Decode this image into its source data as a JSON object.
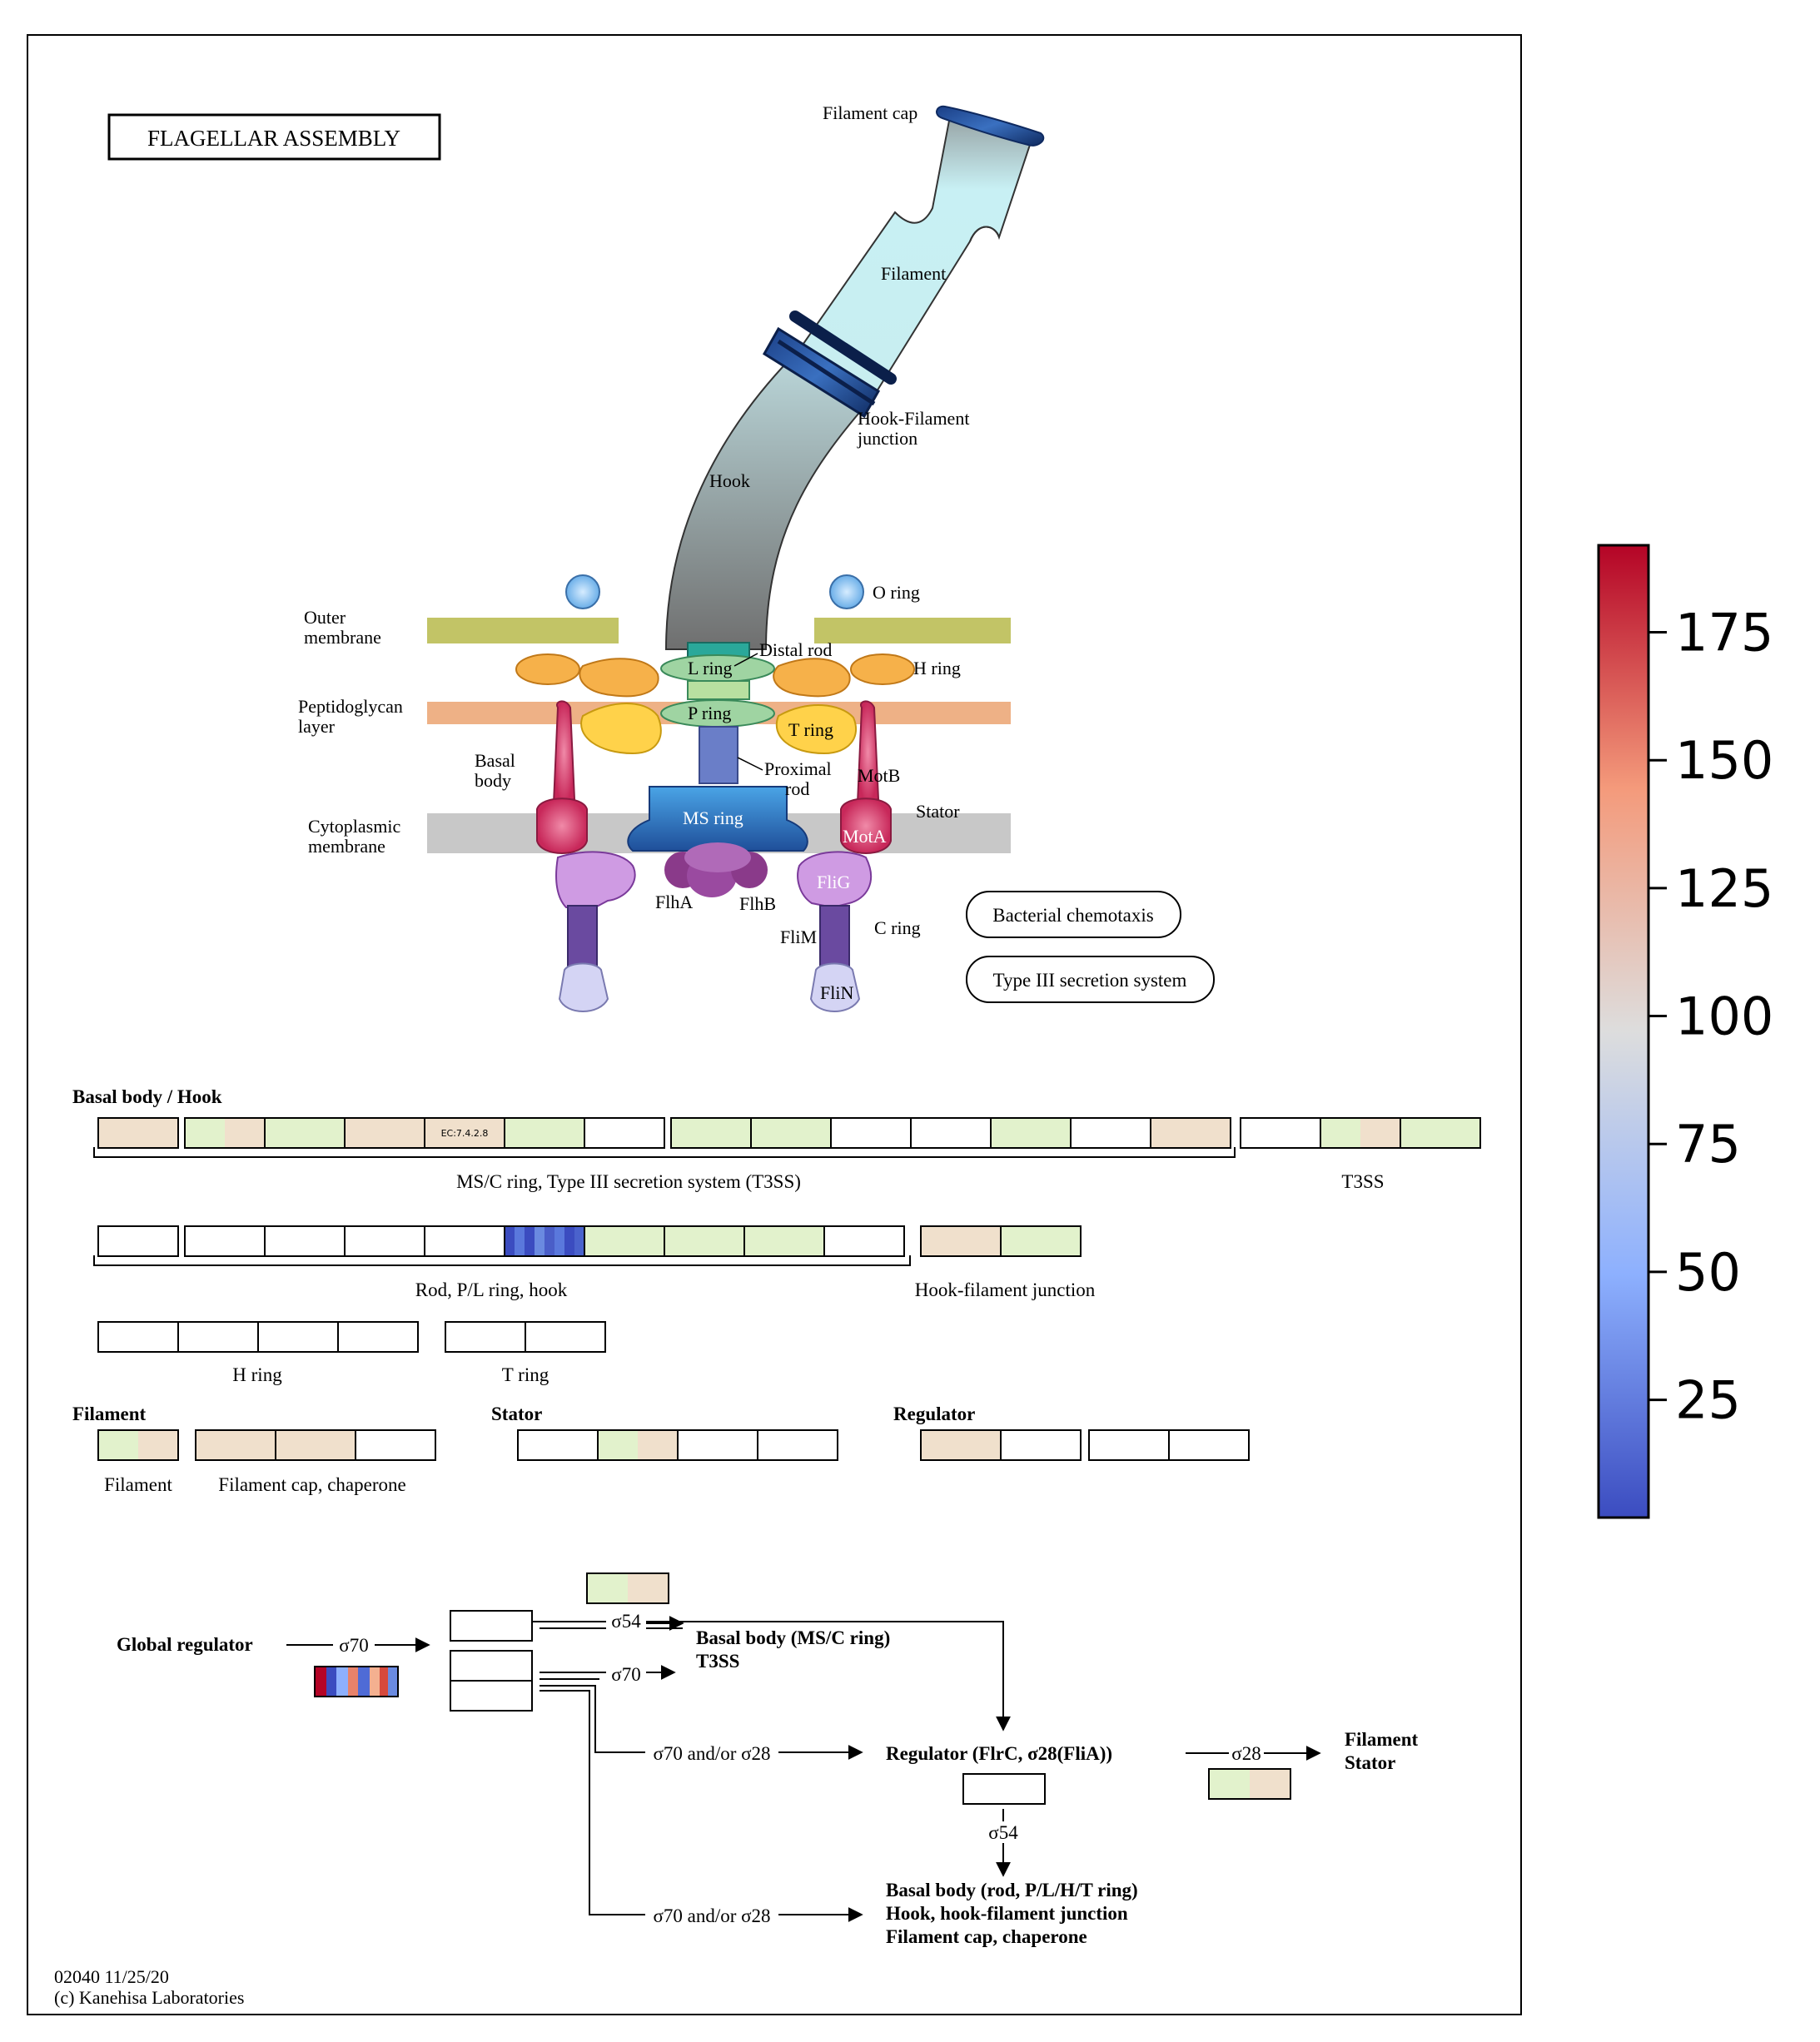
{
  "title": "FLAGELLAR ASSEMBLY",
  "footer": {
    "line1": "02040 11/25/20",
    "line2": "(c) Kanehisa Laboratories"
  },
  "structure_labels": {
    "filament_cap": "Filament cap",
    "filament": "Filament",
    "hook_filament_junction_1": "Hook-Filament",
    "hook_filament_junction_2": "junction",
    "hook": "Hook",
    "o_ring": "O ring",
    "outer_membrane_1": "Outer",
    "outer_membrane_2": "membrane",
    "distal_rod": "Distal rod",
    "l_ring": "L ring",
    "h_ring": "H ring",
    "peptidoglycan_1": "Peptidoglycan",
    "peptidoglycan_2": "layer",
    "p_ring": "P ring",
    "t_ring": "T ring",
    "basal_body_1": "Basal",
    "basal_body_2": "body",
    "proximal_rod_1": "Proximal",
    "proximal_rod_2": "rod",
    "motb": "MotB",
    "stator": "Stator",
    "cytoplasmic_1": "Cytoplasmic",
    "cytoplasmic_2": "membrane",
    "ms_ring": "MS ring",
    "mota": "MotA",
    "flig": "FliG",
    "flha": "FlhA",
    "flhb": "FlhB",
    "flim": "FliM",
    "c_ring": "C ring",
    "flin": "FliN"
  },
  "links": {
    "chemotaxis": "Bacterial chemotaxis",
    "t3ss": "Type III secretion system"
  },
  "sections": {
    "basal_hook": "Basal body / Hook",
    "ms_c_ring": "MS/C ring, Type III secretion system (T3SS)",
    "t3ss": "T3SS",
    "rod": "Rod, P/L ring, hook",
    "hook_filament_junction": "Hook-filament junction",
    "h_ring": "H ring",
    "t_ring": "T ring",
    "filament_head": "Filament",
    "stator_head": "Stator",
    "regulator_head": "Regulator",
    "filament": "Filament",
    "filament_cap": "Filament cap, chaperone",
    "ec_label": "EC:7.4.2.8"
  },
  "regulation": {
    "global_regulator": "Global regulator",
    "sigma70": "σ70",
    "sigma54": "σ54",
    "sigma28": "σ28",
    "sigma70_or_28_a": "σ70 and/or σ28",
    "sigma70_or_28_b": "σ70 and/or σ28",
    "basal_ms_1": "Basal body (MS/C ring)",
    "basal_ms_2": "T3SS",
    "regulator_flrc": "Regulator (FlrC, σ28(FliA))",
    "filament_out_1": "Filament",
    "filament_out_2": "Stator",
    "basal_rod_1": "Basal body (rod, P/L/H/T ring)",
    "basal_rod_2": "Hook, hook-filament junction",
    "basal_rod_3": "Filament cap, chaperone"
  },
  "colorbar": {
    "ticks": [
      "175",
      "150",
      "125",
      "100",
      "75",
      "50",
      "25"
    ],
    "min": 2,
    "max": 192,
    "colors": {
      "low": "#3b4cc0",
      "mid": "#dddddd",
      "high": "#b40426"
    }
  },
  "gene_colors": {
    "beige": "#f0e0cc",
    "green": "#e2f2cc",
    "white": "#ffffff"
  }
}
